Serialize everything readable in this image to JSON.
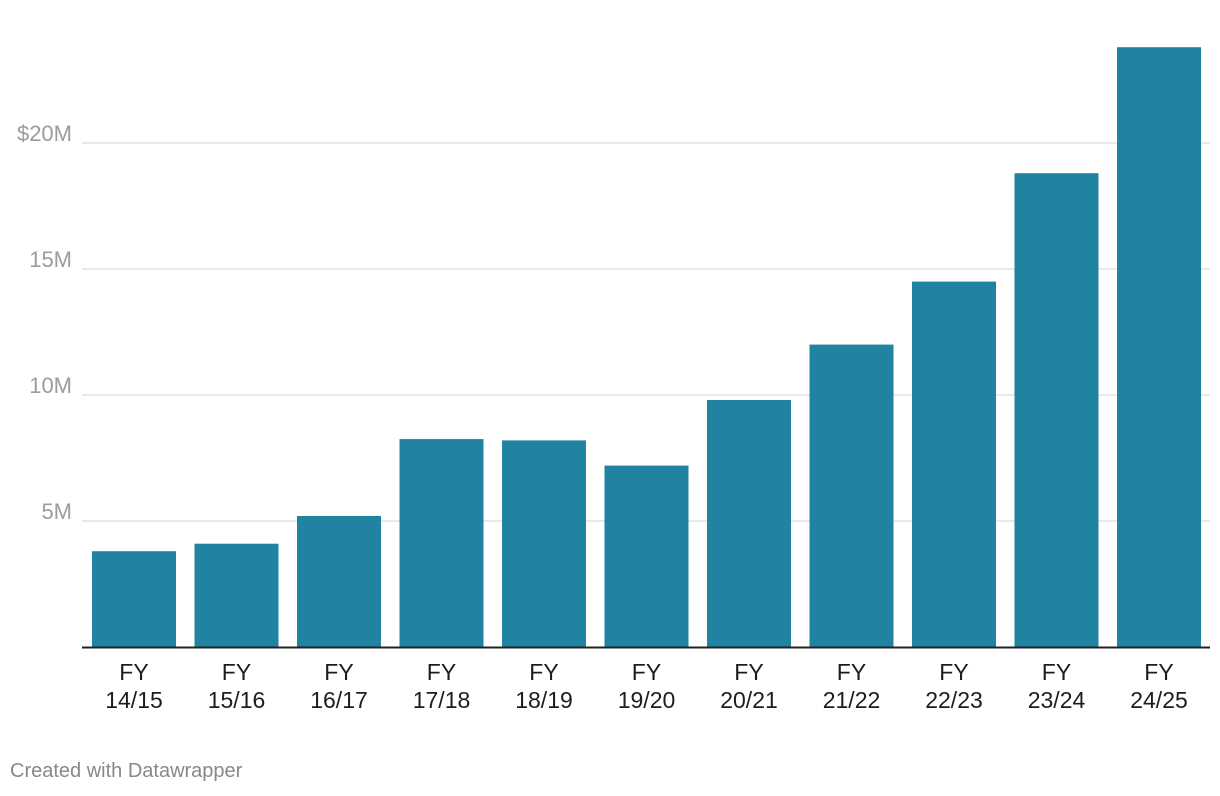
{
  "chart_data": {
    "type": "bar",
    "categories": [
      "FY 14/15",
      "FY 15/16",
      "FY 16/17",
      "FY 17/18",
      "FY 18/19",
      "FY 19/20",
      "FY 20/21",
      "FY 21/22",
      "FY 22/23",
      "FY 23/24",
      "FY 24/25"
    ],
    "values": [
      3.8,
      4.1,
      5.2,
      8.25,
      8.2,
      7.2,
      9.8,
      12.0,
      14.5,
      18.8,
      23.8
    ],
    "unit": "millions USD",
    "ylim": [
      0,
      24
    ],
    "yticks": [
      {
        "value": 5,
        "label": "5M"
      },
      {
        "value": 10,
        "label": "10M"
      },
      {
        "value": 15,
        "label": "15M"
      },
      {
        "value": 20,
        "label": "$20M"
      }
    ],
    "grid": true,
    "legend": "none",
    "title": "",
    "xlabel": "",
    "ylabel": "",
    "bar_color": "#1f83a1"
  },
  "footer": {
    "credit": "Created with Datawrapper"
  }
}
